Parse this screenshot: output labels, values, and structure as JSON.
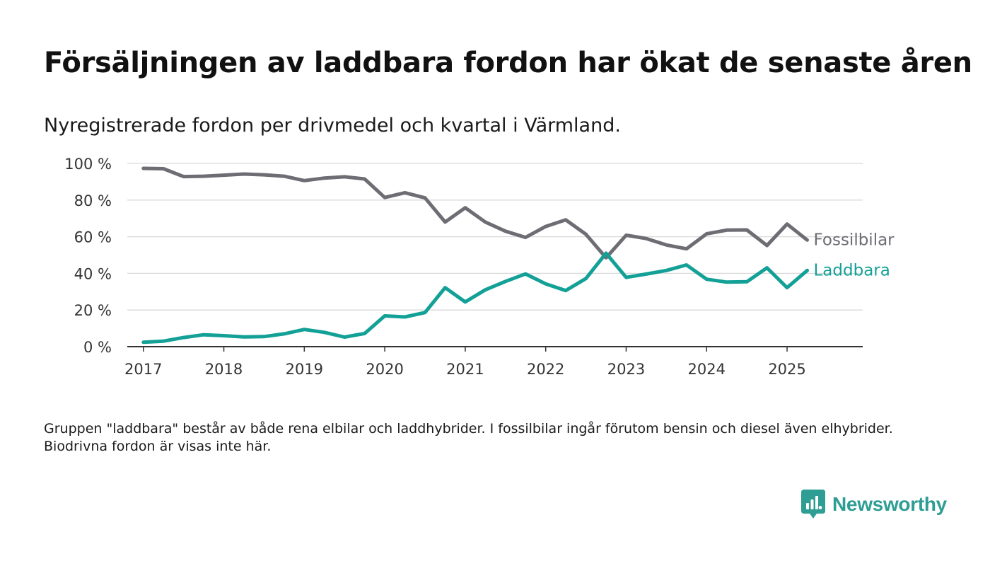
{
  "title": "Försäljningen av laddbara fordon har ökat de senaste åren",
  "subtitle": "Nyregistrerade fordon per drivmedel och kvartal i Värmland.",
  "note": "Gruppen \"laddbara\" består av både rena elbilar och laddhybrider. I fossilbilar ingår förutom bensin och diesel även elhybrider. Biodrivna fordon är visas inte här.",
  "brand": {
    "name": "Newsworthy",
    "color": "#2e9d94",
    "icon": "newsworthy-logo-icon"
  },
  "chart_data": {
    "type": "line",
    "x_start_year": 2017,
    "x_step": 0.25,
    "xlim": [
      2016.8,
      2025.94
    ],
    "ylim": [
      0,
      100
    ],
    "yticks": [
      0,
      20,
      40,
      60,
      80,
      100
    ],
    "ytick_labels": [
      "0 %",
      "20 %",
      "40 %",
      "60 %",
      "80 %",
      "100 %"
    ],
    "xticks": [
      2017,
      2018,
      2019,
      2020,
      2021,
      2022,
      2023,
      2024,
      2025
    ],
    "xtick_labels": [
      "2017",
      "2018",
      "2019",
      "2020",
      "2021",
      "2022",
      "2023",
      "2024",
      "2025"
    ],
    "grid": true,
    "series": [
      {
        "name": "Fossilbilar",
        "color": "#6e6d74",
        "values": [
          97.3,
          97.1,
          92.8,
          93.0,
          93.6,
          94.2,
          93.8,
          93.0,
          90.6,
          92.0,
          92.7,
          91.5,
          81.4,
          84.0,
          81.2,
          68.0,
          75.8,
          68.0,
          63.0,
          59.6,
          65.6,
          69.2,
          61.3,
          48.5,
          60.8,
          59.0,
          55.5,
          53.4,
          61.6,
          63.6,
          63.7,
          55.2,
          66.9,
          58.2
        ]
      },
      {
        "name": "Laddbara",
        "color": "#13a096",
        "values": [
          2.4,
          3.0,
          5.0,
          6.5,
          6.0,
          5.3,
          5.5,
          7.0,
          9.4,
          7.8,
          5.2,
          7.2,
          16.8,
          16.2,
          18.6,
          32.2,
          24.4,
          31.0,
          35.6,
          39.7,
          34.3,
          30.6,
          37.2,
          51.0,
          37.8,
          39.6,
          41.6,
          44.6,
          36.8,
          35.2,
          35.4,
          43.0,
          32.2,
          41.6
        ]
      }
    ]
  }
}
